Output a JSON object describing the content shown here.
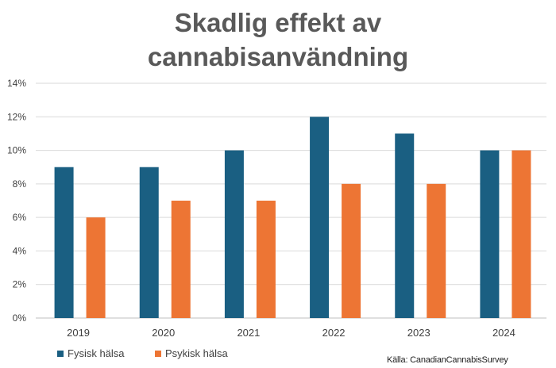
{
  "chart_data": {
    "type": "bar",
    "title": "Skadlig effekt av cannabisanvändning",
    "title_lines": [
      "Skadlig effekt av",
      "cannabisanvändning"
    ],
    "categories": [
      "2019",
      "2020",
      "2021",
      "2022",
      "2023",
      "2024"
    ],
    "series": [
      {
        "name": "Fysisk hälsa",
        "color": "#1a5f82",
        "values": [
          9,
          9,
          10,
          12,
          11,
          10
        ]
      },
      {
        "name": "Psykisk hälsa",
        "color": "#ed7534",
        "values": [
          6,
          7,
          7,
          8,
          8,
          10
        ]
      }
    ],
    "yticks": [
      "0%",
      "2%",
      "4%",
      "6%",
      "8%",
      "10%",
      "12%",
      "14%"
    ],
    "ylim": [
      0,
      14
    ],
    "y_unit": "%",
    "grid": true,
    "legend_position": "bottom-left",
    "source": "Källa: CanadianCannabisSurvey"
  }
}
